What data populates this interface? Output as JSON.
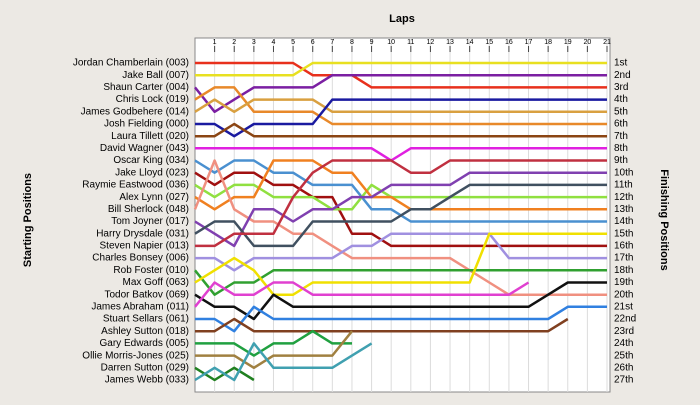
{
  "chart_data": {
    "type": "line",
    "title": "Laps",
    "y_label_left": "Starting Positions",
    "y_label_right": "Finishing Positions",
    "x": [
      0,
      1,
      2,
      3,
      4,
      5,
      6,
      7,
      8,
      9,
      10,
      11,
      12,
      13,
      14,
      15,
      16,
      17,
      18,
      19,
      20,
      21
    ],
    "xlim": [
      0,
      21
    ],
    "xticks": [
      1,
      2,
      3,
      4,
      5,
      6,
      7,
      8,
      9,
      10,
      11,
      12,
      13,
      14,
      15,
      16,
      17,
      18,
      19,
      20,
      21
    ],
    "ylim": [
      1,
      27
    ],
    "y_inverted": true,
    "grid": true,
    "finishing_positions": [
      "1st",
      "2nd",
      "3rd",
      "4th",
      "5th",
      "6th",
      "7th",
      "8th",
      "9th",
      "10th",
      "11th",
      "12th",
      "13th",
      "14th",
      "15th",
      "16th",
      "17th",
      "18th",
      "19th",
      "20th",
      "21st",
      "22nd",
      "23rd",
      "24th",
      "25th",
      "26th",
      "27th"
    ],
    "series": [
      {
        "name": "Jordan Chamberlain (003)",
        "color": "#e8301c",
        "values": [
          1,
          1,
          1,
          1,
          1,
          1,
          2,
          2,
          2,
          3,
          3,
          3,
          3,
          3,
          3,
          3,
          3,
          3,
          3,
          3,
          3,
          3
        ]
      },
      {
        "name": "Jake Ball (007)",
        "color": "#e8e020",
        "values": [
          2,
          2,
          2,
          2,
          2,
          2,
          1,
          1,
          1,
          1,
          1,
          1,
          1,
          1,
          1,
          1,
          1,
          1,
          1,
          1,
          1,
          1
        ]
      },
      {
        "name": "Shaun Carter (004)",
        "color": "#7b1fa2",
        "values": [
          3,
          5,
          4,
          3,
          3,
          3,
          3,
          2,
          2,
          2,
          2,
          2,
          2,
          2,
          2,
          2,
          2,
          2,
          2,
          2,
          2,
          2
        ]
      },
      {
        "name": "Chris Lock (019)",
        "color": "#e8892a",
        "values": [
          4,
          3,
          3,
          5,
          5,
          5,
          5,
          6,
          6,
          6,
          6,
          6,
          6,
          6,
          6,
          6,
          6,
          6,
          6,
          6,
          6,
          6
        ]
      },
      {
        "name": "James Godbehere (014)",
        "color": "#d9a040",
        "values": [
          5,
          4,
          5,
          4,
          4,
          4,
          4,
          5,
          5,
          5,
          5,
          5,
          5,
          5,
          5,
          5,
          5,
          5,
          5,
          5,
          5,
          5
        ]
      },
      {
        "name": "Josh Fielding (000)",
        "color": "#1a1aa0",
        "values": [
          6,
          6,
          7,
          6,
          6,
          6,
          6,
          4,
          4,
          4,
          4,
          4,
          4,
          4,
          4,
          4,
          4,
          4,
          4,
          4,
          4,
          4
        ]
      },
      {
        "name": "Laura Tillett (020)",
        "color": "#8b4513",
        "values": [
          7,
          7,
          6,
          7,
          7,
          7,
          7,
          7,
          7,
          7,
          7,
          7,
          7,
          7,
          7,
          7,
          7,
          7,
          7,
          7,
          7,
          7
        ]
      },
      {
        "name": "David Wagner (043)",
        "color": "#e020e0",
        "values": [
          8,
          8,
          8,
          8,
          8,
          8,
          8,
          8,
          8,
          8,
          9,
          8,
          8,
          8,
          8,
          8,
          8,
          8,
          8,
          8,
          8,
          8
        ]
      },
      {
        "name": "Oscar King (034)",
        "color": "#4a90d0",
        "values": [
          9,
          10,
          9,
          9,
          10,
          10,
          11,
          11,
          11,
          13,
          13,
          14,
          14,
          14,
          14,
          14,
          14,
          14,
          14,
          14,
          14,
          14
        ]
      },
      {
        "name": "Jake Lloyd (023)",
        "color": "#a01010",
        "values": [
          10,
          11,
          10,
          10,
          11,
          11,
          12,
          12,
          15,
          15,
          16,
          16,
          16,
          16,
          16,
          16,
          16,
          16,
          16,
          16,
          16,
          16
        ]
      },
      {
        "name": "Raymie Eastwood (036)",
        "color": "#90e040",
        "values": [
          11,
          12,
          11,
          11,
          12,
          12,
          12,
          13,
          13,
          11,
          12,
          12,
          12,
          12,
          12,
          12,
          12,
          12,
          12,
          12,
          12,
          12
        ]
      },
      {
        "name": "Alex Lynn (027)",
        "color": "#f08020",
        "values": [
          12,
          13,
          12,
          12,
          9,
          9,
          9,
          10,
          10,
          12,
          12,
          13,
          13,
          13,
          13,
          13,
          13,
          13,
          13,
          13,
          13,
          13
        ]
      },
      {
        "name": "Bill Sherlock (048)",
        "color": "#f09080",
        "values": [
          13,
          9,
          13,
          14,
          14,
          15,
          15,
          16,
          17,
          17,
          17,
          17,
          17,
          17,
          18,
          19,
          20,
          20,
          20,
          20,
          20,
          20
        ]
      },
      {
        "name": "Tom Joyner (017)",
        "color": "#8040b0",
        "values": [
          14,
          15,
          16,
          13,
          13,
          14,
          13,
          13,
          12,
          12,
          11,
          11,
          11,
          11,
          10,
          10,
          10,
          10,
          10,
          10,
          10,
          10
        ]
      },
      {
        "name": "Harry Drysdale (031)",
        "color": "#405060",
        "values": [
          15,
          14,
          14,
          16,
          16,
          16,
          14,
          14,
          14,
          14,
          14,
          13,
          13,
          12,
          11,
          11,
          11,
          11,
          11,
          11,
          11,
          11
        ]
      },
      {
        "name": "Steven Napier (013)",
        "color": "#c03040",
        "values": [
          16,
          16,
          15,
          15,
          15,
          12,
          10,
          9,
          9,
          9,
          9,
          10,
          10,
          9,
          9,
          9,
          9,
          9,
          9,
          9,
          9,
          9
        ]
      },
      {
        "name": "Charles Bonsey (006)",
        "color": "#a090e0",
        "values": [
          17,
          17,
          18,
          17,
          17,
          17,
          17,
          17,
          16,
          16,
          15,
          15,
          15,
          15,
          15,
          15,
          17,
          17,
          17,
          17,
          17,
          17
        ]
      },
      {
        "name": "Rob Foster (010)",
        "color": "#30a030",
        "values": [
          18,
          20,
          19,
          19,
          18,
          18,
          18,
          18,
          18,
          18,
          18,
          18,
          18,
          18,
          18,
          18,
          18,
          18,
          18,
          18,
          18,
          18
        ]
      },
      {
        "name": "Max Goff (063)",
        "color": "#f0e000",
        "values": [
          19,
          18,
          17,
          18,
          20,
          20,
          19,
          19,
          19,
          19,
          19,
          19,
          19,
          19,
          19,
          15,
          15,
          15,
          15,
          15,
          15,
          15
        ]
      },
      {
        "name": "Todor Batkov (069)",
        "color": "#111111",
        "values": [
          20,
          21,
          21,
          22,
          20,
          21,
          21,
          21,
          21,
          21,
          21,
          21,
          21,
          21,
          21,
          21,
          21,
          21,
          20,
          19,
          19,
          19
        ]
      },
      {
        "name": "James Abraham (011)",
        "color": "#e040d0",
        "values": [
          21,
          19,
          20,
          20,
          19,
          19,
          20,
          20,
          20,
          20,
          20,
          20,
          20,
          20,
          20,
          20,
          20,
          19,
          null,
          null,
          null,
          null
        ]
      },
      {
        "name": "Stuart Sellars (061)",
        "color": "#3080e0",
        "values": [
          22,
          22,
          23,
          21,
          22,
          22,
          22,
          22,
          22,
          22,
          22,
          22,
          22,
          22,
          22,
          22,
          22,
          22,
          22,
          21,
          21,
          21
        ]
      },
      {
        "name": "Ashley Sutton (018)",
        "color": "#804020",
        "values": [
          23,
          23,
          22,
          23,
          23,
          23,
          23,
          23,
          23,
          23,
          23,
          23,
          23,
          23,
          23,
          23,
          23,
          23,
          23,
          22,
          null,
          null
        ]
      },
      {
        "name": "Gary Edwards (005)",
        "color": "#20a040",
        "values": [
          24,
          24,
          24,
          25,
          24,
          24,
          23,
          24,
          24,
          null,
          null,
          null,
          null,
          null,
          null,
          null,
          null,
          null,
          null,
          null,
          null,
          null
        ]
      },
      {
        "name": "Ollie Morris-Jones (025)",
        "color": "#a08040",
        "values": [
          25,
          25,
          25,
          26,
          25,
          25,
          25,
          25,
          23,
          null,
          null,
          null,
          null,
          null,
          null,
          null,
          null,
          null,
          null,
          null,
          null,
          null
        ]
      },
      {
        "name": "Darren Sutton (029)",
        "color": "#208020",
        "values": [
          26,
          27,
          26,
          27,
          null,
          null,
          null,
          null,
          null,
          null,
          null,
          null,
          null,
          null,
          null,
          null,
          null,
          null,
          null,
          null,
          null,
          null
        ]
      },
      {
        "name": "James Webb (033)",
        "color": "#40a0b0",
        "values": [
          27,
          26,
          27,
          24,
          26,
          26,
          26,
          26,
          25,
          24,
          null,
          null,
          null,
          null,
          null,
          null,
          null,
          null,
          null,
          null,
          null,
          null
        ]
      }
    ]
  }
}
